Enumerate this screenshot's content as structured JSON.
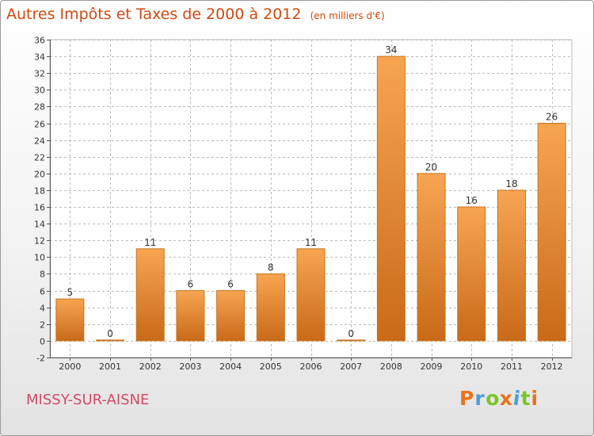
{
  "header": {
    "title": "Autres Impôts et Taxes de 2000 à 2012",
    "unit": "(en milliers d'€)"
  },
  "footer": {
    "commune": "MISSY-SUR-AISNE",
    "brand": "Proxiti",
    "brand_colors": [
      "#e8741c",
      "#4aa0d8",
      "#7cc428",
      "#e8741c",
      "#4aa0d8",
      "#7cc428",
      "#e8741c"
    ]
  },
  "colors": {
    "title": "#d04a10",
    "commune": "#d24a6a",
    "bar_light": "#f7a552",
    "bar_dark": "#c96a18",
    "grid": "#bbbbbb",
    "axis": "#555555"
  },
  "chart_data": {
    "type": "bar",
    "title": "Autres Impôts et Taxes de 2000 à 2012",
    "subtitle": "(en milliers d'€)",
    "categories": [
      "2000",
      "2001",
      "2002",
      "2003",
      "2004",
      "2005",
      "2006",
      "2007",
      "2008",
      "2009",
      "2010",
      "2011",
      "2012"
    ],
    "values": [
      5,
      0,
      11,
      6,
      6,
      8,
      11,
      0,
      34,
      20,
      16,
      18,
      26
    ],
    "data_labels": [
      "5",
      "0",
      "11",
      "6",
      "6",
      "8",
      "11",
      "0",
      "34",
      "20",
      "16",
      "18",
      "26"
    ],
    "ylim": [
      -2,
      36
    ],
    "yticks": [
      -2,
      0,
      2,
      4,
      6,
      8,
      10,
      12,
      14,
      16,
      18,
      20,
      22,
      24,
      26,
      28,
      30,
      32,
      34,
      36
    ],
    "grid": true,
    "xlabel": "",
    "ylabel": ""
  }
}
